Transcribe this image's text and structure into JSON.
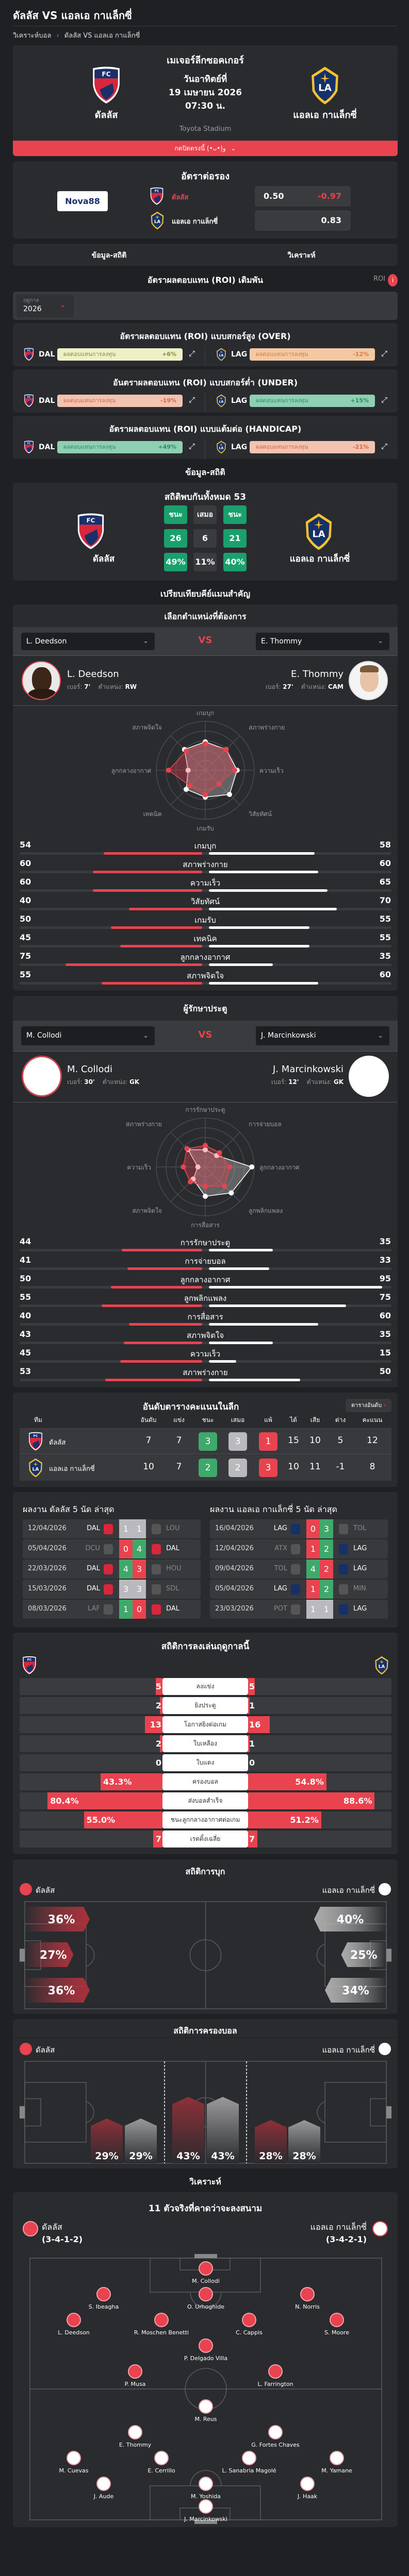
{
  "header": {
    "title": "ดัลลัส VS แอลเอ กาแล็กซี่"
  },
  "breadcrumb": {
    "home": "วิเคราะห์บอล",
    "separator": "›",
    "current": "ดัลลัส VS แอลเอ กาแล็กซี่"
  },
  "match": {
    "league": "เมเจอร์ลีกซอคเกอร์",
    "day": "วันอาทิตย์ที่",
    "date": "19 เมษายน 2026",
    "time": "07:30 น.",
    "home": "ดัลลัส",
    "away": "แอลเอ กาแล็กซี่",
    "venue": "Toyota Stadium",
    "toggle_label": "กดปิดตรงนี้ (•ᴗ•)و"
  },
  "odds": {
    "title": "อัตราต่อรอง",
    "bookmaker": "Nova88",
    "home_team": "ดัลลัส",
    "away_team": "แอลเอ กาแล็กซี่",
    "handicap": "0.50",
    "home_odds": "-0.97",
    "away_odds": "0.83"
  },
  "tabs": [
    {
      "label": "ข้อมูล-สถิติ"
    },
    {
      "label": "วิเคราะห์"
    }
  ],
  "roi": {
    "title": "อัตราผลตอบแทน (ROI) เดิมพัน",
    "badge": "ROI",
    "season_label": "ฤดูกาล",
    "season": "2026",
    "bar_label": "ผลตอบแทนการลงทุน",
    "sections": [
      {
        "title": "อัตราผลตอบแทน (ROI) แบบสกอร์สูง (OVER)",
        "home": {
          "abbr": "DAL",
          "value": "+6%",
          "color": "#eef0c8",
          "text": "#8a8a40"
        },
        "away": {
          "abbr": "LAG",
          "value": "-12%",
          "color": "#f2c9a2",
          "text": "#d9773f"
        }
      },
      {
        "title": "อันตราผลตอบแทน (ROI) แบบสกอร์ต่ำ (UNDER)",
        "home": {
          "abbr": "DAL",
          "value": "-19%",
          "color": "#f1c3b0",
          "text": "#d9653f"
        },
        "away": {
          "abbr": "LAG",
          "value": "+15%",
          "color": "#8fcfb4",
          "text": "#2f8a63"
        }
      },
      {
        "title": "อัตราผลตอบแทน (ROI) แบบแต้มต่อ (HANDICAP)",
        "home": {
          "abbr": "DAL",
          "value": "+49%",
          "color": "#8fcfb4",
          "text": "#2f8a63"
        },
        "away": {
          "abbr": "LAG",
          "value": "-21%",
          "color": "#f1c3b0",
          "text": "#d9653f"
        }
      }
    ]
  },
  "stats_heading": "ข้อมูล-สถิติ",
  "h2h": {
    "title": "สถิติพบกันทั้งหมด 53",
    "home": "ดัลลัส",
    "away": "แอลเอ กาแล็กซี่",
    "labels": [
      "ชนะ",
      "เสมอ",
      "ชนะ"
    ],
    "counts": [
      "26",
      "6",
      "21"
    ],
    "pcts": [
      "49%",
      "11%",
      "40%"
    ]
  },
  "keyman": {
    "heading": "เปรียบเทียบคีย์แมนสำคัญ",
    "title": "เลือกตำแหน่งที่ต้องการ",
    "vs": "VS",
    "number_label": "เบอร์:",
    "position_label": "ตำแหน่ง:",
    "home": {
      "name": "L. Deedson",
      "number": "7'",
      "position": "RW"
    },
    "away": {
      "name": "E. Thommy",
      "number": "27'",
      "position": "CAM"
    },
    "axes": [
      "เกมบุก",
      "สภาพร่างกาย",
      "ความเร็ว",
      "วิสัยทัศน์",
      "เกมรับ",
      "เทคนิค",
      "ลูกกลางอากาศ",
      "สภาพจิตใจ"
    ],
    "home_values": [
      54,
      60,
      60,
      40,
      50,
      45,
      75,
      55
    ],
    "away_values": [
      58,
      60,
      65,
      70,
      55,
      55,
      35,
      60
    ]
  },
  "goalkeeper": {
    "title": "ผู้รักษาประตู",
    "vs": "VS",
    "number_label": "เบอร์:",
    "position_label": "ตำแหน่ง:",
    "home": {
      "name": "M. Collodi",
      "number": "30'",
      "position": "GK"
    },
    "away": {
      "name": "J. Marcinkowski",
      "number": "12'",
      "position": "GK"
    },
    "axes": [
      "การรักษาประตู",
      "การจ่ายบอล",
      "ลูกกลางอากาศ",
      "ลูกพลิกแพลง",
      "การสื่อสาร",
      "สภาพจิตใจ",
      "ความเร็ว",
      "สภาพร่างกาย"
    ],
    "home_values": [
      44,
      41,
      50,
      55,
      40,
      43,
      45,
      53
    ],
    "away_values": [
      35,
      33,
      95,
      75,
      60,
      35,
      15,
      50
    ]
  },
  "standings": {
    "title": "อันดับตารางคะแนนในลีก",
    "button": "ตารางอันดับ",
    "columns": [
      "ทีม",
      "อันดับ",
      "แข่ง",
      "ชนะ",
      "เสมอ",
      "แพ้",
      "ได้",
      "เสีย",
      "ต่าง",
      "คะแนน"
    ],
    "rows": [
      {
        "team": "ดัลลัส",
        "logo": "dal",
        "cells": [
          "7",
          "7",
          "3",
          "3",
          "1",
          "15",
          "10",
          "5",
          "12"
        ]
      },
      {
        "team": "แอลเอ กาแล็กซี่",
        "logo": "lag",
        "cells": [
          "10",
          "7",
          "2",
          "2",
          "3",
          "10",
          "11",
          "-1",
          "8"
        ]
      }
    ]
  },
  "form": {
    "home_title": "ผลงาน ดัลลัส 5 นัด ล่าสุด",
    "away_title": "ผลงาน แอลเอ กาแล็กซี่ 5 นัด ล่าสุด",
    "home": [
      {
        "date": "12/04/2026",
        "home": "DAL",
        "hs": "1",
        "as": "1",
        "away": "LOU",
        "focus": "home"
      },
      {
        "date": "05/04/2026",
        "home": "DCU",
        "hs": "0",
        "as": "4",
        "away": "DAL",
        "focus": "away"
      },
      {
        "date": "22/03/2026",
        "home": "DAL",
        "hs": "4",
        "as": "3",
        "away": "HOU",
        "focus": "home"
      },
      {
        "date": "15/03/2026",
        "home": "DAL",
        "hs": "3",
        "as": "3",
        "away": "SDL",
        "focus": "home"
      },
      {
        "date": "08/03/2026",
        "home": "LAF",
        "hs": "1",
        "as": "0",
        "away": "DAL",
        "focus": "away"
      }
    ],
    "away": [
      {
        "date": "16/04/2026",
        "home": "LAG",
        "hs": "0",
        "as": "3",
        "away": "TOL",
        "focus": "home"
      },
      {
        "date": "12/04/2026",
        "home": "ATX",
        "hs": "1",
        "as": "2",
        "away": "LAG",
        "focus": "away"
      },
      {
        "date": "09/04/2026",
        "home": "TOL",
        "hs": "4",
        "as": "2",
        "away": "LAG",
        "focus": "away"
      },
      {
        "date": "05/04/2026",
        "home": "LAG",
        "hs": "1",
        "as": "2",
        "away": "MIN",
        "focus": "home"
      },
      {
        "date": "23/03/2026",
        "home": "POT",
        "hs": "1",
        "as": "1",
        "away": "LAG",
        "focus": "away"
      }
    ]
  },
  "season_stats": {
    "title": "สถิติการลงเล่นฤดูกาลนี้",
    "rows": [
      {
        "label": "ลงแข่ง",
        "home": "5",
        "away": "5"
      },
      {
        "label": "ยิงประตู",
        "home": "2",
        "away": "1"
      },
      {
        "label": "โอกาสยิงต่อเกม",
        "home": "13",
        "away": "16"
      },
      {
        "label": "ใบเหลือง",
        "home": "2",
        "away": "1"
      },
      {
        "label": "ใบแดง",
        "home": "0",
        "away": "0"
      },
      {
        "label": "ครองบอล",
        "home": "43.3%",
        "away": "54.8%"
      },
      {
        "label": "ส่งบอลสำเร็จ",
        "home": "80.4%",
        "away": "88.6%"
      },
      {
        "label": "ชนะลูกกลางอากาศต่อเกม",
        "home": "55.0%",
        "away": "51.2%"
      },
      {
        "label": "เรตติ้งเฉลี่ย",
        "home": "7",
        "away": "7"
      }
    ]
  },
  "attack": {
    "title": "สถิติการบุก",
    "home": "ดัลลัส",
    "away": "แอลเอ กาแล็กซี่",
    "home_values": [
      "36%",
      "27%",
      "36%"
    ],
    "away_values": [
      "40%",
      "25%",
      "34%"
    ]
  },
  "possession": {
    "title": "สถิติการครองบอล",
    "home": "ดัลลัส",
    "away": "แอลเอ กาแล็กซี่",
    "thirds": [
      {
        "home": "29%",
        "away": "29%"
      },
      {
        "home": "43%",
        "away": "43%"
      },
      {
        "home": "28%",
        "away": "28%"
      }
    ]
  },
  "analysis_heading": "วิเคราะห์",
  "lineup": {
    "title": "11 ตัวจริงที่คาดว่าจะลงสนาม",
    "home": "ดัลลัส",
    "away": "แอลเอ กาแล็กซี่",
    "home_formation": "(3-4-1-2)",
    "away_formation": "(3-4-2-1)",
    "home_players": [
      "M. Collodi",
      "S. Ibeagha",
      "O. Urhoghide",
      "N. Norris",
      "L. Deedson",
      "R. Moschen Benetti",
      "C. Cappis",
      "S. Moore",
      "P. Delgado Villa",
      "P. Musa",
      "L. Farrington"
    ],
    "away_players": [
      "M. Reus",
      "E. Thommy",
      "G. Fortes Chaves",
      "M. Cuevas",
      "E. Cerrillo",
      "L. Sanabria Magolé",
      "M. Yamane",
      "J. Aude",
      "M. Yoshida",
      "J. Haak",
      "J. Marcinkowski"
    ]
  },
  "colors": {
    "accent": "#e8434f",
    "win": "#3fa86b",
    "draw": "#b9b9be",
    "h2h_green": "#1aa06d",
    "card": "#2a2b2e",
    "page": "#1f2023"
  }
}
